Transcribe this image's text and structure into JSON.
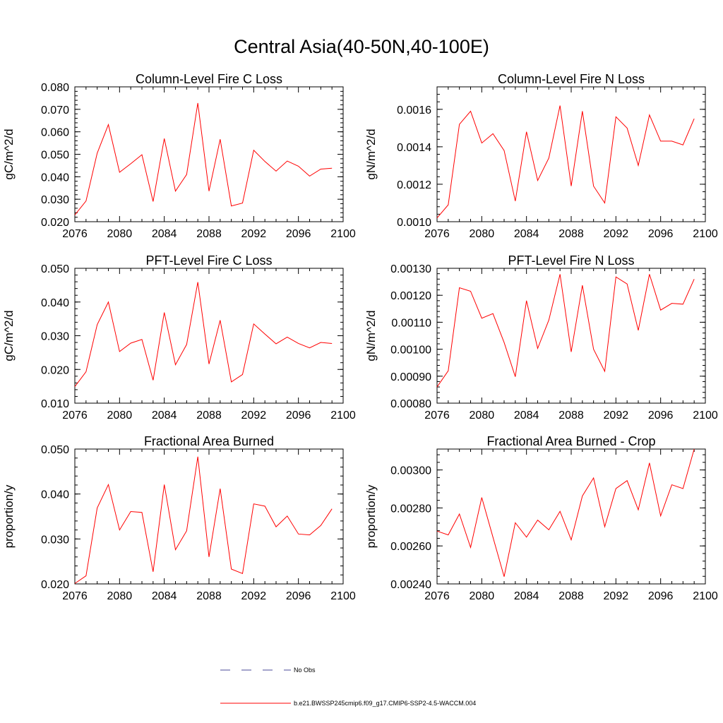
{
  "figure": {
    "title": "Central Asia(40-50N,40-100E)",
    "line_color": "#ff0000",
    "legend": [
      {
        "label": "No Obs",
        "style": "dashed",
        "color": "#4a4a9a"
      },
      {
        "label": "b.e21.BWSSP245cmip6.f09_g17.CMIP6-SSP2-4.5-WACCM.004",
        "style": "solid",
        "color": "#ff0000"
      }
    ]
  },
  "chart_data": [
    {
      "type": "line",
      "title": "Column-Level Fire C Loss",
      "ylabel": "gC/m^2/d",
      "xlim": [
        2076,
        2100
      ],
      "x_ticks": [
        "2076",
        "2080",
        "2084",
        "2088",
        "2092",
        "2096",
        "2100"
      ],
      "ylim": [
        0.02,
        0.08
      ],
      "y_ticks": [
        "0.020",
        "0.030",
        "0.040",
        "0.050",
        "0.060",
        "0.070",
        "0.080"
      ],
      "x": [
        2076,
        2077,
        2078,
        2079,
        2080,
        2081,
        2082,
        2083,
        2084,
        2085,
        2086,
        2087,
        2088,
        2089,
        2090,
        2091,
        2092,
        2093,
        2094,
        2095,
        2096,
        2097,
        2098,
        2099
      ],
      "series": [
        {
          "values": [
            0.023,
            0.0292,
            0.0505,
            0.0632,
            0.042,
            0.0458,
            0.0498,
            0.029,
            0.057,
            0.0336,
            0.041,
            0.0728,
            0.0336,
            0.0567,
            0.027,
            0.0283,
            0.0518,
            0.0468,
            0.0425,
            0.047,
            0.0447,
            0.0403,
            0.0434,
            0.0438
          ]
        }
      ]
    },
    {
      "type": "line",
      "title": "Column-Level Fire N Loss",
      "ylabel": "gN/m^2/d",
      "xlim": [
        2076,
        2100
      ],
      "x_ticks": [
        "2076",
        "2080",
        "2084",
        "2088",
        "2092",
        "2096",
        "2100"
      ],
      "ylim": [
        0.001,
        0.00172
      ],
      "y_ticks": [
        "0.0010",
        "0.0012",
        "0.0014",
        "0.0016"
      ],
      "x": [
        2076,
        2077,
        2078,
        2079,
        2080,
        2081,
        2082,
        2083,
        2084,
        2085,
        2086,
        2087,
        2088,
        2089,
        2090,
        2091,
        2092,
        2093,
        2094,
        2095,
        2096,
        2097,
        2098,
        2099
      ],
      "series": [
        {
          "values": [
            0.00102,
            0.00109,
            0.00152,
            0.00159,
            0.00142,
            0.00147,
            0.00138,
            0.00111,
            0.00148,
            0.00122,
            0.00134,
            0.00162,
            0.00119,
            0.00159,
            0.00119,
            0.0011,
            0.00156,
            0.0015,
            0.0013,
            0.00157,
            0.00143,
            0.00143,
            0.00141,
            0.00155
          ]
        }
      ]
    },
    {
      "type": "line",
      "title": "PFT-Level Fire C Loss",
      "ylabel": "gC/m^2/d",
      "xlim": [
        2076,
        2100
      ],
      "x_ticks": [
        "2076",
        "2080",
        "2084",
        "2088",
        "2092",
        "2096",
        "2100"
      ],
      "ylim": [
        0.01,
        0.05
      ],
      "y_ticks": [
        "0.010",
        "0.020",
        "0.030",
        "0.040",
        "0.050"
      ],
      "x": [
        2076,
        2077,
        2078,
        2079,
        2080,
        2081,
        2082,
        2083,
        2084,
        2085,
        2086,
        2087,
        2088,
        2089,
        2090,
        2091,
        2092,
        2093,
        2094,
        2095,
        2096,
        2097,
        2098,
        2099
      ],
      "series": [
        {
          "values": [
            0.0149,
            0.0193,
            0.0333,
            0.04,
            0.0253,
            0.0278,
            0.0289,
            0.0168,
            0.0369,
            0.0214,
            0.0274,
            0.0459,
            0.0216,
            0.0346,
            0.0163,
            0.0185,
            0.0335,
            0.0305,
            0.0276,
            0.0296,
            0.0277,
            0.0264,
            0.028,
            0.0277
          ]
        }
      ]
    },
    {
      "type": "line",
      "title": "PFT-Level Fire N Loss",
      "ylabel": "gN/m^2/d",
      "xlim": [
        2076,
        2100
      ],
      "x_ticks": [
        "2076",
        "2080",
        "2084",
        "2088",
        "2092",
        "2096",
        "2100"
      ],
      "ylim": [
        0.0008,
        0.0013
      ],
      "y_ticks": [
        "0.00080",
        "0.00090",
        "0.00100",
        "0.00110",
        "0.00120",
        "0.00130"
      ],
      "x": [
        2076,
        2077,
        2078,
        2079,
        2080,
        2081,
        2082,
        2083,
        2084,
        2085,
        2086,
        2087,
        2088,
        2089,
        2090,
        2091,
        2092,
        2093,
        2094,
        2095,
        2096,
        2097,
        2098,
        2099
      ],
      "series": [
        {
          "values": [
            0.00086,
            0.00092,
            0.001228,
            0.001215,
            0.001115,
            0.001132,
            0.001025,
            0.000898,
            0.00118,
            0.001003,
            0.001108,
            0.001278,
            0.00099,
            0.001237,
            0.001,
            0.000918,
            0.001268,
            0.001242,
            0.00107,
            0.001278,
            0.001145,
            0.00117,
            0.001167,
            0.00126
          ]
        }
      ]
    },
    {
      "type": "line",
      "title": "Fractional Area Burned",
      "ylabel": "proportion/y",
      "xlim": [
        2076,
        2100
      ],
      "x_ticks": [
        "2076",
        "2080",
        "2084",
        "2088",
        "2092",
        "2096",
        "2100"
      ],
      "ylim": [
        0.02,
        0.05
      ],
      "y_ticks": [
        "0.020",
        "0.030",
        "0.040",
        "0.050"
      ],
      "x": [
        2076,
        2077,
        2078,
        2079,
        2080,
        2081,
        2082,
        2083,
        2084,
        2085,
        2086,
        2087,
        2088,
        2089,
        2090,
        2091,
        2092,
        2093,
        2094,
        2095,
        2096,
        2097,
        2098,
        2099
      ],
      "series": [
        {
          "values": [
            0.0201,
            0.0218,
            0.0369,
            0.0421,
            0.032,
            0.0361,
            0.0359,
            0.0227,
            0.0421,
            0.0276,
            0.0318,
            0.0483,
            0.026,
            0.0412,
            0.0233,
            0.0223,
            0.0378,
            0.0373,
            0.0327,
            0.0351,
            0.0311,
            0.0309,
            0.033,
            0.0367
          ]
        }
      ]
    },
    {
      "type": "line",
      "title": "Fractional Area Burned - Crop",
      "ylabel": "proportion/y",
      "xlim": [
        2076,
        2100
      ],
      "x_ticks": [
        "2076",
        "2080",
        "2084",
        "2088",
        "2092",
        "2096",
        "2100"
      ],
      "ylim": [
        0.0024,
        0.00311
      ],
      "y_ticks": [
        "0.00240",
        "0.00260",
        "0.00280",
        "0.00300"
      ],
      "x": [
        2076,
        2077,
        2078,
        2079,
        2080,
        2081,
        2082,
        2083,
        2084,
        2085,
        2086,
        2087,
        2088,
        2089,
        2090,
        2091,
        2092,
        2093,
        2094,
        2095,
        2096,
        2097,
        2098,
        2099
      ],
      "series": [
        {
          "values": [
            0.002678,
            0.002658,
            0.002768,
            0.002592,
            0.002855,
            0.002646,
            0.002438,
            0.002722,
            0.002646,
            0.002736,
            0.002685,
            0.002782,
            0.002632,
            0.002863,
            0.002958,
            0.002701,
            0.002902,
            0.002944,
            0.00279,
            0.003037,
            0.002758,
            0.002922,
            0.002902,
            0.00311
          ]
        }
      ]
    }
  ]
}
